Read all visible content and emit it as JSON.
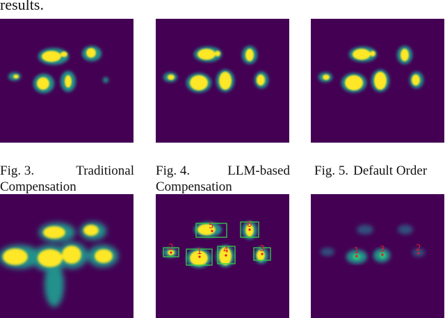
{
  "paper": {
    "leading_text": "results.",
    "figures": [
      {
        "label": "Fig. 3.",
        "caption_line1": "Traditional",
        "caption_line2": "Compensation"
      },
      {
        "label": "Fig. 4.",
        "caption_line1": "LLM-based",
        "caption_line2": "Compensation"
      },
      {
        "label": "Fig. 5.",
        "caption_line1": "Default Order",
        "caption_line2": ""
      }
    ],
    "colors": {
      "background": "#440154",
      "hot": "#fde725",
      "halo": "#21918c",
      "box": "#2fd24a",
      "marker": "#e0192a"
    }
  },
  "bottom_panels": {
    "middle_labels": [
      "5",
      "6",
      "2",
      "1",
      "4",
      "3"
    ],
    "right_labels": [
      "1",
      "3",
      "2"
    ]
  }
}
